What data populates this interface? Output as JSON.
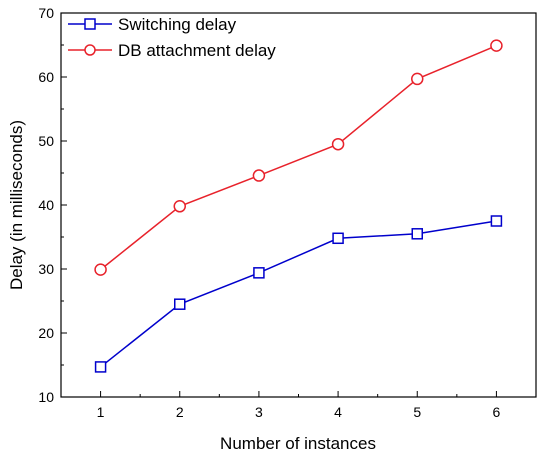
{
  "chart_data": {
    "type": "line",
    "title": "",
    "xlabel": "Number of instances",
    "ylabel": "Delay (in milliseconds)",
    "x": [
      1,
      2,
      3,
      4,
      5,
      6
    ],
    "xlim": [
      0.5,
      6.5
    ],
    "ylim": [
      10,
      70
    ],
    "x_ticks": [
      "1",
      "2",
      "3",
      "4",
      "5",
      "6"
    ],
    "y_ticks": [
      "10",
      "20",
      "30",
      "40",
      "50",
      "60",
      "70"
    ],
    "grid": false,
    "legend_position": "top-left",
    "series": [
      {
        "name": "Switching delay",
        "color": "#0000cc",
        "marker": "square",
        "values": [
          14.7,
          24.5,
          29.4,
          34.8,
          35.5,
          37.5
        ]
      },
      {
        "name": "DB attachment delay",
        "color": "#e8222b",
        "marker": "circle",
        "values": [
          29.9,
          39.8,
          44.6,
          49.5,
          59.7,
          64.9
        ]
      }
    ]
  }
}
